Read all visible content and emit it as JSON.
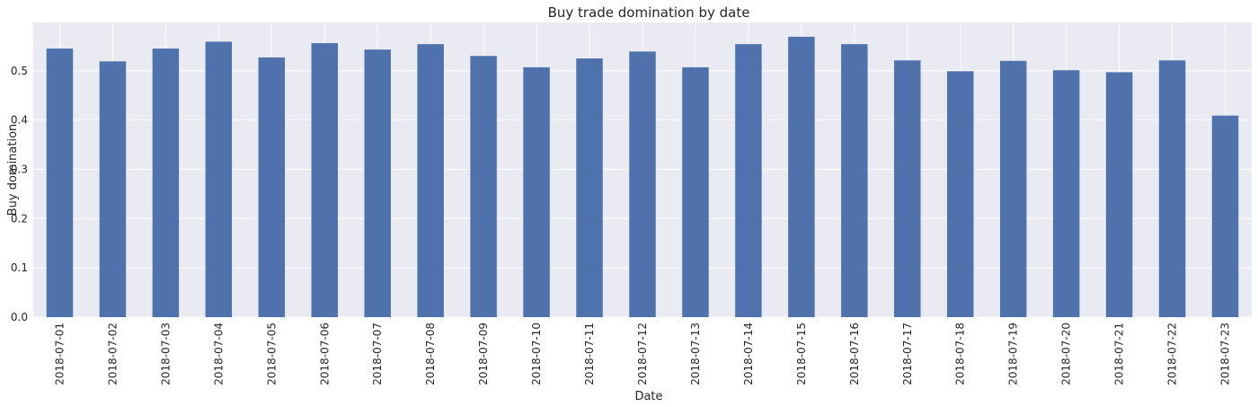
{
  "chart_data": {
    "type": "bar",
    "title": "Buy trade domination by date",
    "xlabel": "Date",
    "ylabel": "Buy domination",
    "categories": [
      "2018-07-01",
      "2018-07-02",
      "2018-07-03",
      "2018-07-04",
      "2018-07-05",
      "2018-07-06",
      "2018-07-07",
      "2018-07-08",
      "2018-07-09",
      "2018-07-10",
      "2018-07-11",
      "2018-07-12",
      "2018-07-13",
      "2018-07-14",
      "2018-07-15",
      "2018-07-16",
      "2018-07-17",
      "2018-07-18",
      "2018-07-19",
      "2018-07-20",
      "2018-07-21",
      "2018-07-22",
      "2018-07-23"
    ],
    "values": [
      0.545,
      0.519,
      0.545,
      0.559,
      0.527,
      0.556,
      0.543,
      0.554,
      0.53,
      0.507,
      0.525,
      0.539,
      0.507,
      0.554,
      0.569,
      0.554,
      0.521,
      0.499,
      0.52,
      0.501,
      0.497,
      0.521,
      0.409
    ],
    "yticks": [
      0.0,
      0.1,
      0.2,
      0.3,
      0.4,
      0.5
    ],
    "ytick_labels": [
      "0.0",
      "0.1",
      "0.2",
      "0.3",
      "0.4",
      "0.5"
    ],
    "ylim": [
      0,
      0.598
    ],
    "grid": true,
    "colors": {
      "bar": "#4f72ad",
      "plot_background": "#eaeaf2",
      "grid": "#ffffff",
      "text": "#262626"
    }
  }
}
